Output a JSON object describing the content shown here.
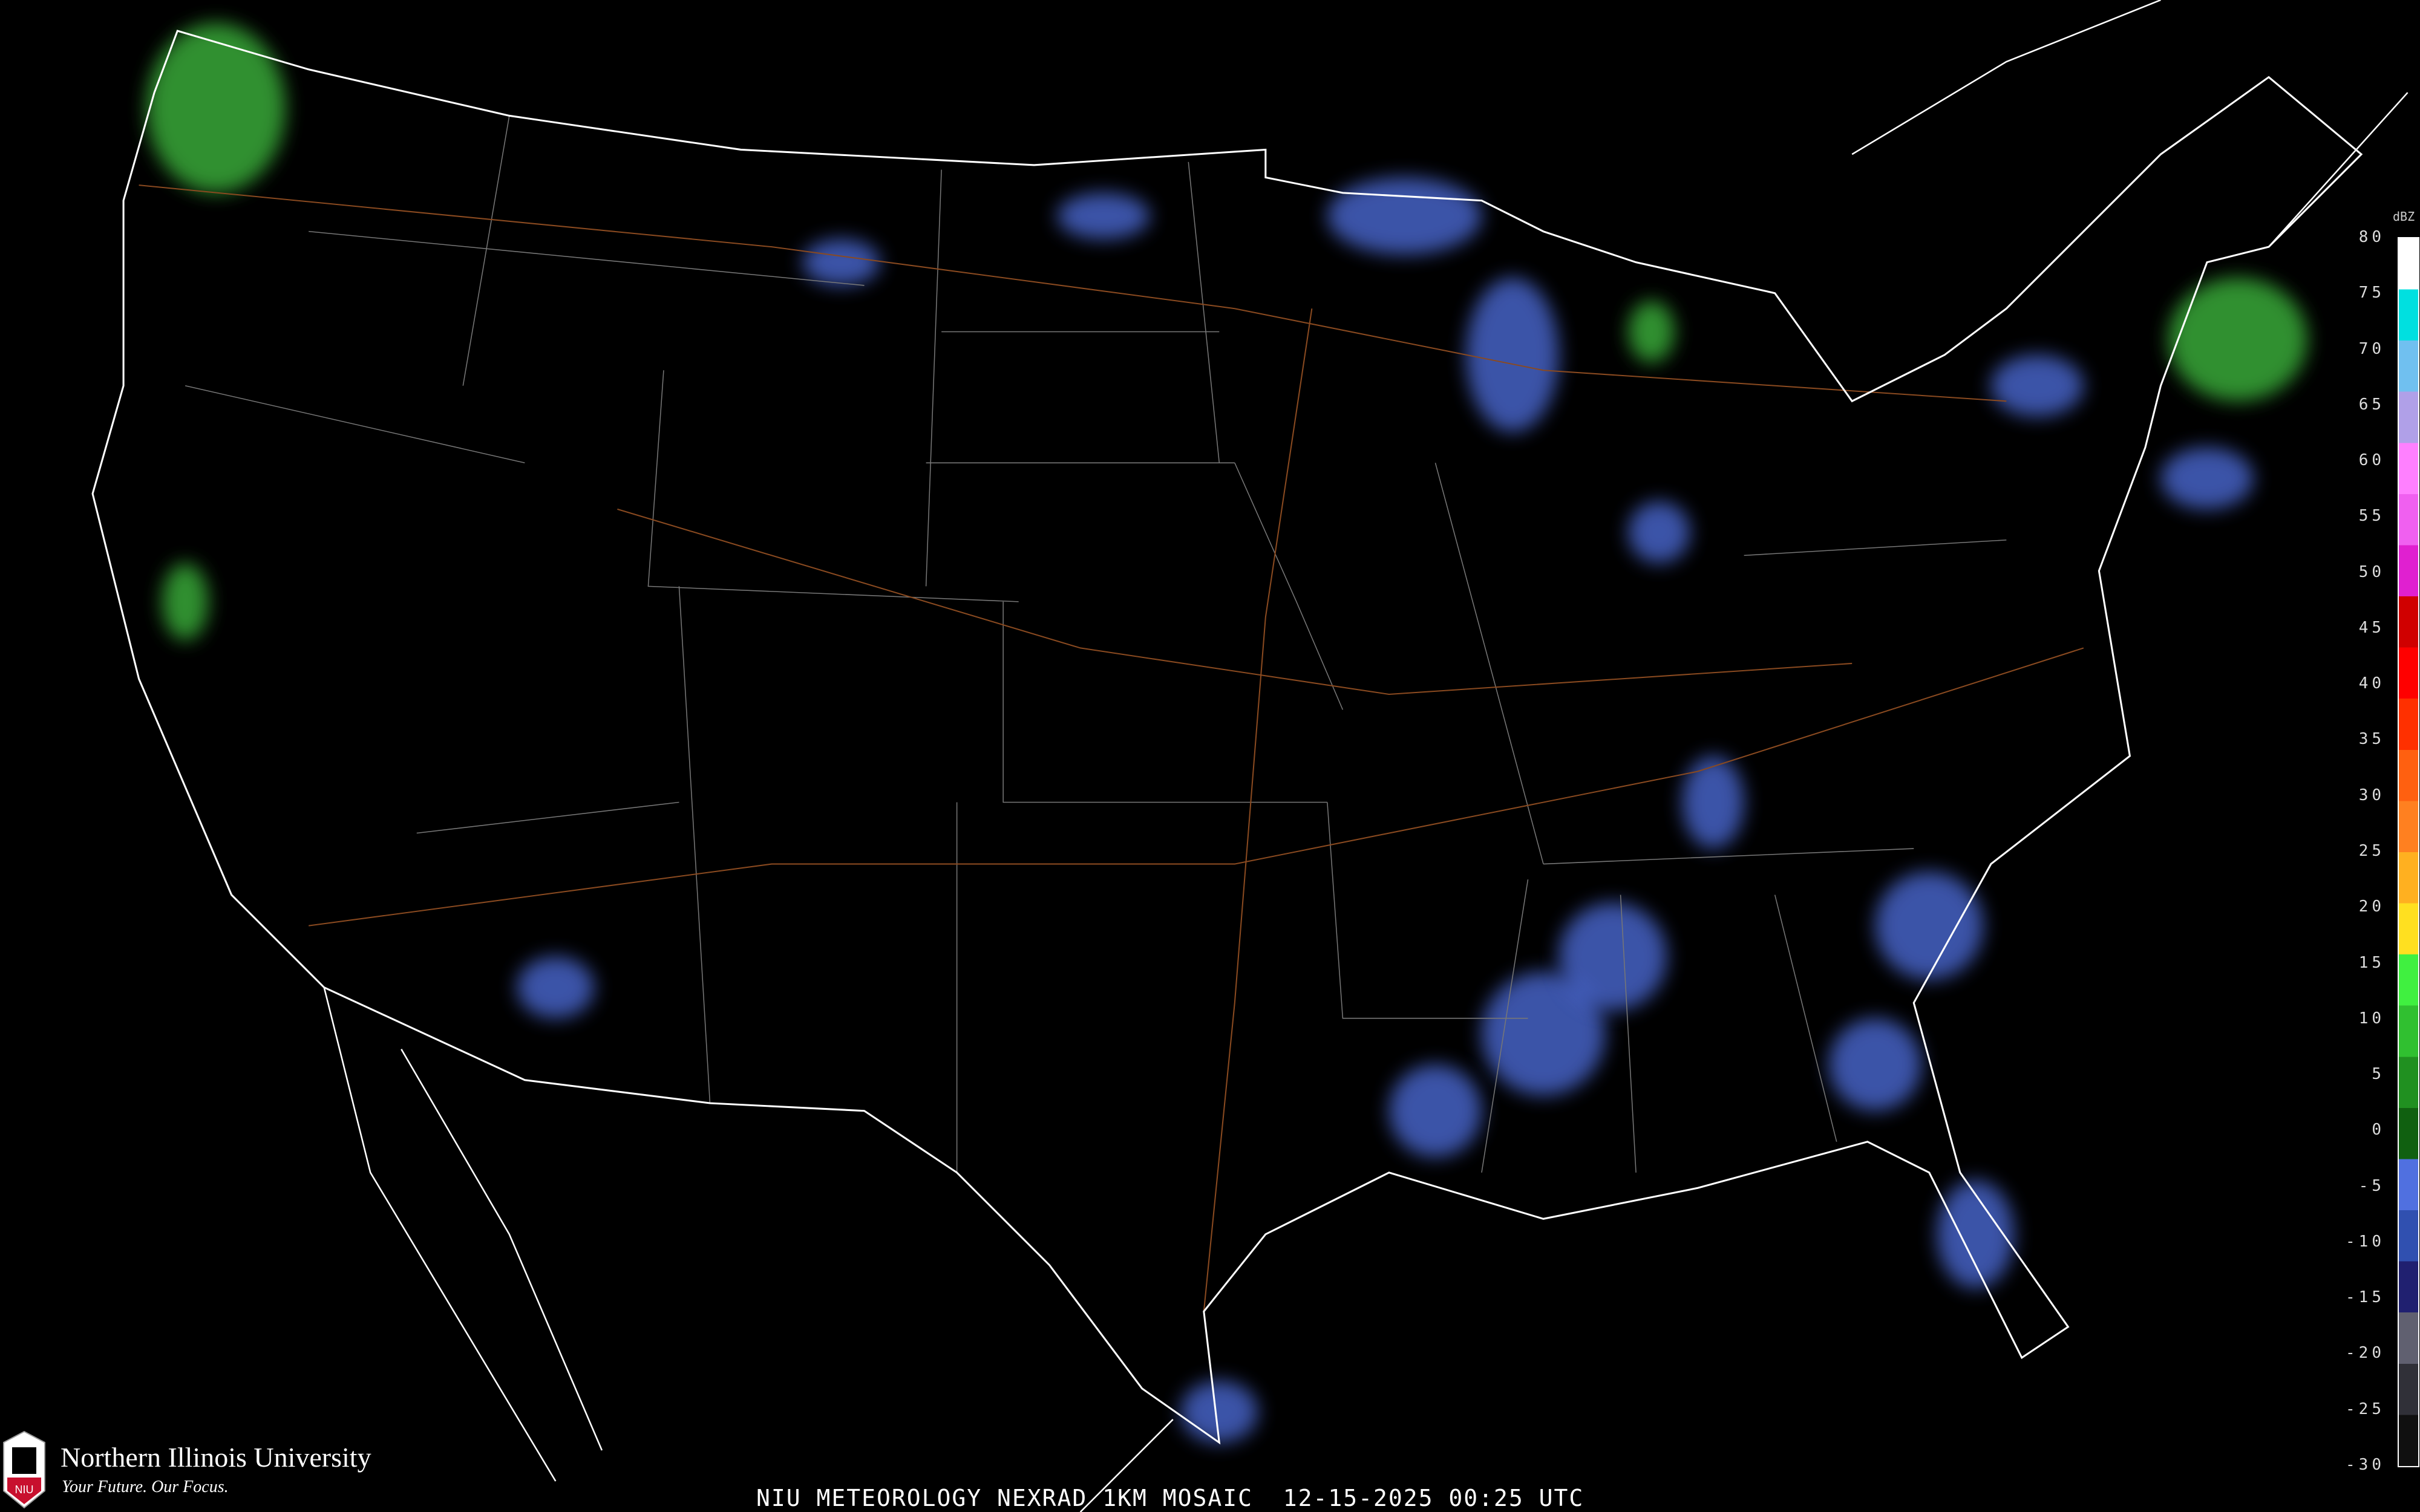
{
  "caption": "NIU METEOROLOGY NEXRAD 1KM MOSAIC  12-15-2025 00:25 UTC",
  "logo": {
    "name": "Northern Illinois University",
    "tagline": "Your Future. Our Focus.",
    "mark": "NIU"
  },
  "legend": {
    "unit": "dBZ",
    "labels": [
      "80",
      "75",
      "70",
      "65",
      "60",
      "55",
      "50",
      "45",
      "40",
      "35",
      "30",
      "25",
      "20",
      "15",
      "10",
      "5",
      "0",
      "-5",
      "-10",
      "-15",
      "-20",
      "-25",
      "-30"
    ],
    "colors": [
      "#ffffff",
      "#00e0e0",
      "#70c0f0",
      "#b0a0e8",
      "#ff80ff",
      "#f060f0",
      "#e020d0",
      "#d00000",
      "#ff0000",
      "#ff3000",
      "#ff6010",
      "#ff8020",
      "#ffb020",
      "#ffe020",
      "#40f040",
      "#30c030",
      "#209020",
      "#106010",
      "#5070e0",
      "#3050b0",
      "#202070",
      "#606070",
      "#303038",
      "#101010"
    ]
  },
  "colors": {
    "borders": "#ffffff",
    "counties": "#606060",
    "highways": "#8a4a20",
    "background": "#000000"
  }
}
